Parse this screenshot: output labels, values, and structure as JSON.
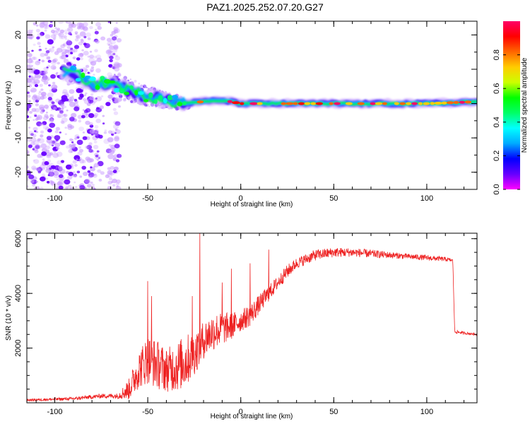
{
  "figure_title": "PAZ1.2025.252.07.20.G27",
  "colors": {
    "snr_line": "#ee2222",
    "frame": "#000000"
  },
  "chart_data": [
    {
      "type": "heatmap",
      "title": "",
      "xlabel": "Height of straight line (km)",
      "ylabel": "Frequency (Hz)",
      "xlim": [
        -115,
        127
      ],
      "ylim": [
        -25,
        24
      ],
      "x_ticks": [
        -100,
        -50,
        0,
        50,
        100
      ],
      "x_tick_labels": [
        "-100",
        "-50",
        "0",
        "50",
        "100"
      ],
      "y_ticks": [
        -20,
        -10,
        0,
        10,
        20
      ],
      "y_tick_labels": [
        "-20",
        "-10",
        "0",
        "10",
        "20"
      ],
      "colormap": [
        "#ff00ff",
        "#6600ff",
        "#0000ff",
        "#00aaff",
        "#00ffff",
        "#00ff66",
        "#00ff00",
        "#ccff00",
        "#ffcc00",
        "#ff6600",
        "#ff0000",
        "#ff0066"
      ],
      "colorbar": {
        "label": "Normalized spectral amplitude",
        "range": [
          0,
          1
        ],
        "ticks": [
          0.0,
          0.2,
          0.4,
          0.6,
          0.8
        ],
        "tick_labels": [
          "0.0",
          "0.2",
          "0.4",
          "0.6",
          "0.8"
        ]
      },
      "ridge": [
        {
          "x": -90,
          "f": 9
        },
        {
          "x": -80,
          "f": 6
        },
        {
          "x": -70,
          "f": 6
        },
        {
          "x": -60,
          "f": 4
        },
        {
          "x": -50,
          "f": 2
        },
        {
          "x": -40,
          "f": 1
        },
        {
          "x": -30,
          "f": 0
        },
        {
          "x": -20,
          "f": 0.6
        },
        {
          "x": -10,
          "f": 1
        },
        {
          "x": 0,
          "f": 0
        },
        {
          "x": 50,
          "f": 0
        },
        {
          "x": 100,
          "f": 0
        },
        {
          "x": 125,
          "f": 0.5
        }
      ],
      "noise_region_x": [
        -115,
        -65
      ]
    },
    {
      "type": "line",
      "title": "",
      "xlabel": "Height of straight line (km)",
      "ylabel": "SNR (10 * v/v)",
      "xlim": [
        -115,
        127
      ],
      "ylim": [
        0,
        6200
      ],
      "x_ticks": [
        -100,
        -50,
        0,
        50,
        100
      ],
      "x_tick_labels": [
        "-100",
        "-50",
        "0",
        "50",
        "100"
      ],
      "y_ticks": [
        2000,
        4000,
        6000
      ],
      "y_tick_labels": [
        "2000",
        "4000",
        "6000"
      ],
      "series": [
        {
          "name": "SNR",
          "envelope_x": [
            -115,
            -90,
            -75,
            -66,
            -60,
            -55,
            -50,
            -45,
            -40,
            -35,
            -30,
            -25,
            -20,
            -15,
            -10,
            -5,
            0,
            5,
            10,
            15,
            20,
            25,
            30,
            40,
            50,
            60,
            70,
            80,
            90,
            100,
            110,
            114,
            115,
            120,
            127
          ],
          "envelope_y": [
            100,
            150,
            250,
            250,
            500,
            1200,
            1600,
            1400,
            1200,
            1300,
            1500,
            1800,
            2300,
            2600,
            2700,
            2800,
            3000,
            3200,
            3600,
            4000,
            4400,
            4800,
            5100,
            5400,
            5500,
            5500,
            5450,
            5400,
            5350,
            5300,
            5250,
            5200,
            2600,
            2550,
            2500
          ],
          "noise_amplitude": [
            40,
            60,
            80,
            100,
            400,
            700,
            900,
            900,
            800,
            900,
            1000,
            800,
            700,
            700,
            600,
            500,
            400,
            400,
            350,
            300,
            250,
            250,
            200,
            200,
            180,
            160,
            150,
            120,
            100,
            100,
            80,
            60,
            60,
            50,
            40
          ],
          "spikes": [
            {
              "x": -50,
              "y": 4450
            },
            {
              "x": -48,
              "y": 3900
            },
            {
              "x": -22,
              "y": 6200
            },
            {
              "x": -26,
              "y": 3900
            },
            {
              "x": -10,
              "y": 4400
            },
            {
              "x": -5,
              "y": 4900
            },
            {
              "x": 5,
              "y": 5100
            },
            {
              "x": 15,
              "y": 5600
            }
          ]
        }
      ]
    }
  ]
}
